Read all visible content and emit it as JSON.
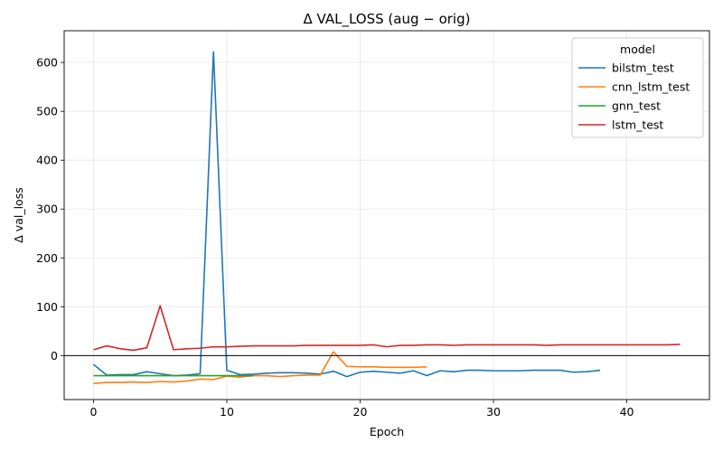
{
  "chart_data": {
    "type": "line",
    "title": "Δ VAL_LOSS (aug − orig)",
    "xlabel": "Epoch",
    "ylabel": "Δ val_loss",
    "xlim": [
      -2.2,
      46.2
    ],
    "ylim": [
      -90,
      665
    ],
    "xticks": [
      0,
      10,
      20,
      30,
      40
    ],
    "yticks": [
      0,
      100,
      200,
      300,
      400,
      500,
      600
    ],
    "grid": true,
    "zero_line": true,
    "legend": {
      "title": "model",
      "placement": "top-right"
    },
    "series": [
      {
        "name": "bilstm_test",
        "color": "#1f77b4",
        "x": [
          0,
          1,
          2,
          3,
          4,
          5,
          6,
          7,
          8,
          9,
          10,
          11,
          12,
          13,
          14,
          15,
          16,
          17,
          18,
          19,
          20,
          21,
          22,
          23,
          24,
          25,
          26,
          27,
          28,
          29,
          30,
          31,
          32,
          33,
          34,
          35,
          36,
          37,
          38
        ],
        "values": [
          -18,
          -40,
          -39,
          -39,
          -33,
          -37,
          -41,
          -40,
          -37,
          622,
          -30,
          -39,
          -38,
          -36,
          -35,
          -35,
          -36,
          -38,
          -32,
          -43,
          -34,
          -32,
          -34,
          -36,
          -31,
          -41,
          -31,
          -33,
          -30,
          -30,
          -31,
          -31,
          -31,
          -30,
          -30,
          -30,
          -34,
          -33,
          -30
        ]
      },
      {
        "name": "cnn_lstm_test",
        "color": "#ff7f0e",
        "x": [
          0,
          1,
          2,
          3,
          4,
          5,
          6,
          7,
          8,
          9,
          10,
          11,
          12,
          13,
          14,
          15,
          16,
          17,
          18,
          19,
          20,
          21,
          22,
          23,
          24,
          25
        ],
        "values": [
          -57,
          -55,
          -55,
          -54,
          -55,
          -53,
          -54,
          -52,
          -48,
          -49,
          -42,
          -44,
          -41,
          -41,
          -43,
          -41,
          -40,
          -40,
          8,
          -22,
          -23,
          -23,
          -24,
          -24,
          -24,
          -23
        ]
      },
      {
        "name": "gnn_test",
        "color": "#2ca02c",
        "x": [
          0,
          1,
          2,
          3,
          4,
          5,
          6,
          7,
          8,
          9,
          10,
          11,
          12
        ],
        "values": [
          -41,
          -41,
          -41,
          -41,
          -41,
          -41,
          -41,
          -41,
          -41,
          -41,
          -41,
          -41,
          -41
        ]
      },
      {
        "name": "lstm_test",
        "color": "#d62728",
        "x": [
          0,
          1,
          2,
          3,
          4,
          5,
          6,
          7,
          8,
          9,
          10,
          11,
          12,
          13,
          14,
          15,
          16,
          17,
          18,
          19,
          20,
          21,
          22,
          23,
          24,
          25,
          26,
          27,
          28,
          29,
          30,
          31,
          32,
          33,
          34,
          35,
          36,
          37,
          38,
          39,
          40,
          41,
          42,
          43,
          44
        ],
        "values": [
          12,
          20,
          14,
          11,
          16,
          102,
          12,
          14,
          15,
          18,
          18,
          19,
          20,
          20,
          20,
          20,
          21,
          21,
          21,
          21,
          21,
          22,
          18,
          21,
          21,
          22,
          22,
          21,
          22,
          22,
          22,
          22,
          22,
          22,
          21,
          22,
          22,
          22,
          22,
          22,
          22,
          22,
          22,
          22,
          23
        ]
      }
    ]
  }
}
